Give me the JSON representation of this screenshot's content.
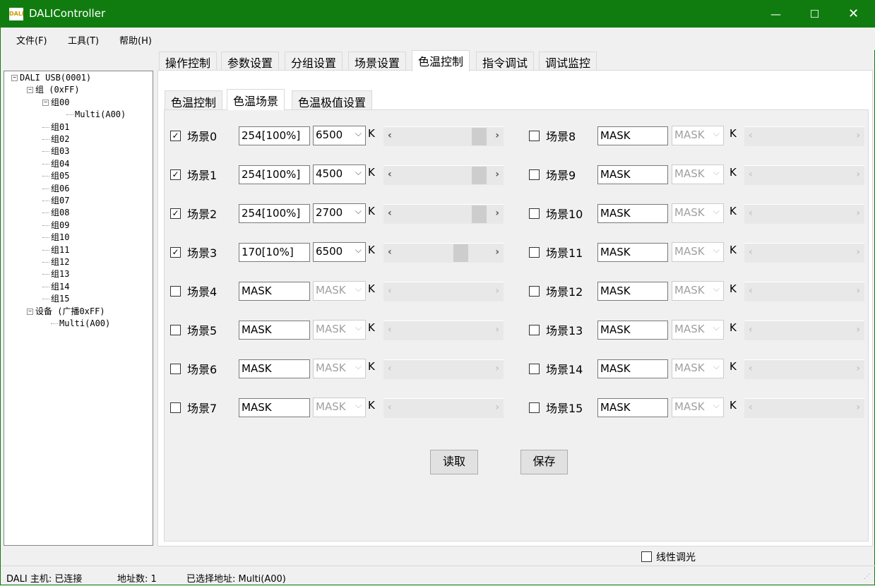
{
  "window": {
    "title": "DALIController",
    "icon": "DALI",
    "minimize_icon": "minimize-icon",
    "maximize_icon": "maximize-icon",
    "close_icon": "close-icon",
    "title_color": "#107c10"
  },
  "menu": [
    "文件(F)",
    "工具(T)",
    "帮助(H)"
  ],
  "tabs": [
    "操作控制",
    "参数设置",
    "分组设置",
    "场景设置",
    "色温控制",
    "指令调试",
    "调试监控"
  ],
  "active_tab": "色温控制",
  "subtabs": [
    "色温控制",
    "色温场景",
    "色温极值设置"
  ],
  "active_subtab": "色温场景",
  "tree": [
    {
      "label": "DALI USB(0001)",
      "expanded": true
    },
    {
      "label": "组 (0xFF)",
      "expanded": true
    },
    {
      "label": "组00",
      "expanded": true
    },
    {
      "label": "Multi(A00)"
    },
    {
      "label": "组01"
    },
    {
      "label": "组02"
    },
    {
      "label": "组03"
    },
    {
      "label": "组04"
    },
    {
      "label": "组05"
    },
    {
      "label": "组06"
    },
    {
      "label": "组07"
    },
    {
      "label": "组08"
    },
    {
      "label": "组09"
    },
    {
      "label": "组10"
    },
    {
      "label": "组11"
    },
    {
      "label": "组12"
    },
    {
      "label": "组13"
    },
    {
      "label": "组14"
    },
    {
      "label": "组15"
    },
    {
      "label": "设备 (广播0xFF)",
      "expanded": true
    },
    {
      "label": "Multi(A00)"
    }
  ],
  "scenes": [
    {
      "label": "场景0",
      "checked": true,
      "level": "254[100%]",
      "cct": "6500",
      "unit": "K",
      "slider": 0.95,
      "enabled": true
    },
    {
      "label": "场景1",
      "checked": true,
      "level": "254[100%]",
      "cct": "4500",
      "unit": "K",
      "slider": 0.95,
      "enabled": true
    },
    {
      "label": "场景2",
      "checked": true,
      "level": "254[100%]",
      "cct": "2700",
      "unit": "K",
      "slider": 0.95,
      "enabled": true
    },
    {
      "label": "场景3",
      "checked": true,
      "level": "170[10%]",
      "cct": "6500",
      "unit": "K",
      "slider": 0.72,
      "enabled": true
    },
    {
      "label": "场景4",
      "checked": false,
      "level": "MASK",
      "cct": "MASK",
      "unit": "K",
      "enabled": false
    },
    {
      "label": "场景5",
      "checked": false,
      "level": "MASK",
      "cct": "MASK",
      "unit": "K",
      "enabled": false
    },
    {
      "label": "场景6",
      "checked": false,
      "level": "MASK",
      "cct": "MASK",
      "unit": "K",
      "enabled": false
    },
    {
      "label": "场景7",
      "checked": false,
      "level": "MASK",
      "cct": "MASK",
      "unit": "K",
      "enabled": false
    },
    {
      "label": "场景8",
      "checked": false,
      "level": "MASK",
      "cct": "MASK",
      "unit": "K",
      "enabled": false
    },
    {
      "label": "场景9",
      "checked": false,
      "level": "MASK",
      "cct": "MASK",
      "unit": "K",
      "enabled": false
    },
    {
      "label": "场景10",
      "checked": false,
      "level": "MASK",
      "cct": "MASK",
      "unit": "K",
      "enabled": false
    },
    {
      "label": "场景11",
      "checked": false,
      "level": "MASK",
      "cct": "MASK",
      "unit": "K",
      "enabled": false
    },
    {
      "label": "场景12",
      "checked": false,
      "level": "MASK",
      "cct": "MASK",
      "unit": "K",
      "enabled": false
    },
    {
      "label": "场景13",
      "checked": false,
      "level": "MASK",
      "cct": "MASK",
      "unit": "K",
      "enabled": false
    },
    {
      "label": "场景14",
      "checked": false,
      "level": "MASK",
      "cct": "MASK",
      "unit": "K",
      "enabled": false
    },
    {
      "label": "场景15",
      "checked": false,
      "level": "MASK",
      "cct": "MASK",
      "unit": "K",
      "enabled": false
    }
  ],
  "buttons": {
    "read": "读取",
    "save": "保存"
  },
  "linear_dimming": {
    "label": "线性调光",
    "checked": false
  },
  "status": {
    "host": "DALI 主机: 已连接",
    "count": "地址数: 1",
    "selected": "已选择地址: Multi(A00)"
  }
}
